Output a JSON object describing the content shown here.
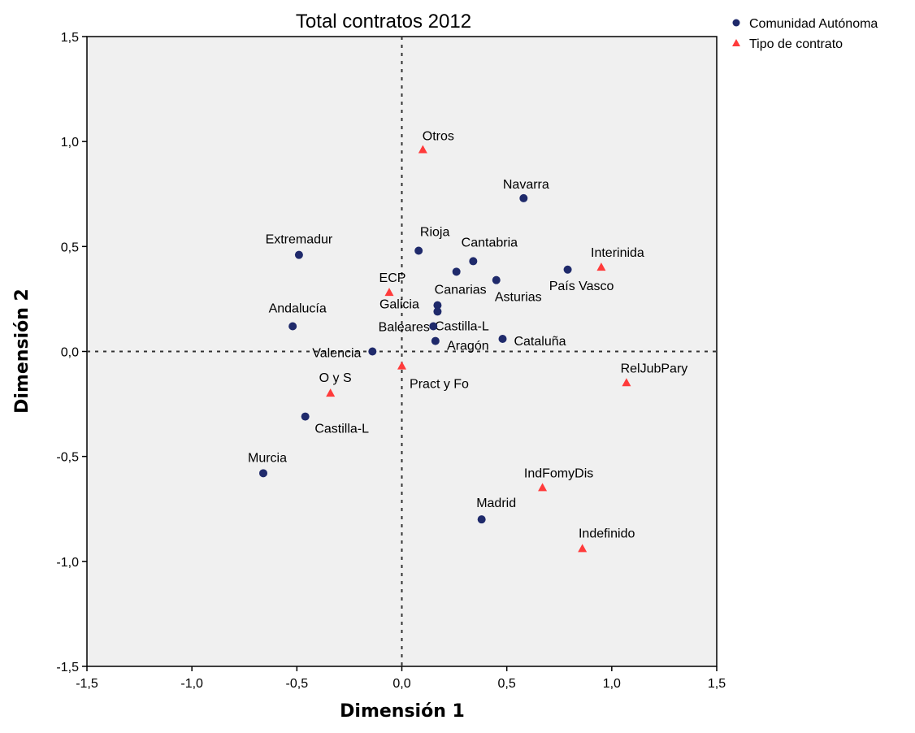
{
  "chart_data": {
    "type": "scatter",
    "title": "Total contratos 2012",
    "xlabel": "Dimensión 1",
    "ylabel": "Dimensión 2",
    "xlim": [
      -1.5,
      1.5
    ],
    "ylim": [
      -1.5,
      1.5
    ],
    "x_ticks": [
      -1.5,
      -1.0,
      -0.5,
      0.0,
      0.5,
      1.0,
      1.5
    ],
    "y_ticks": [
      -1.5,
      -1.0,
      -0.5,
      0.0,
      0.5,
      1.0,
      1.5
    ],
    "x_tick_labels": [
      "-1,5",
      "-1,0",
      "-0,5",
      "0,0",
      "0,5",
      "1,0",
      "1,5"
    ],
    "y_tick_labels": [
      "-1,5",
      "-1,0",
      "-0,5",
      "0,0",
      "0,5",
      "1,0",
      "1,5"
    ],
    "reference_lines": {
      "x": 0,
      "y": 0,
      "style": "dashed"
    },
    "grid": false,
    "legend_position": "top-right outside",
    "series": [
      {
        "name": "Comunidad Autónoma",
        "marker": "circle",
        "color": "#1f2a6b",
        "points": [
          {
            "label": "Navarra",
            "x": 0.58,
            "y": 0.73
          },
          {
            "label": "Rioja",
            "x": 0.08,
            "y": 0.48
          },
          {
            "label": "Cantabria",
            "x": 0.34,
            "y": 0.43
          },
          {
            "label": "Extremadur",
            "x": -0.49,
            "y": 0.46
          },
          {
            "label": "País Vasco",
            "x": 0.79,
            "y": 0.39
          },
          {
            "label": "Canarias",
            "x": 0.26,
            "y": 0.38
          },
          {
            "label": "Asturias",
            "x": 0.45,
            "y": 0.34
          },
          {
            "label": "Galicia",
            "x": 0.17,
            "y": 0.22
          },
          {
            "label": "Castilla-L",
            "x": 0.17,
            "y": 0.19
          },
          {
            "label": "Andalucía",
            "x": -0.52,
            "y": 0.12
          },
          {
            "label": "Baleares",
            "x": 0.15,
            "y": 0.12
          },
          {
            "label": "Aragón",
            "x": 0.16,
            "y": 0.05
          },
          {
            "label": "Cataluña",
            "x": 0.48,
            "y": 0.06
          },
          {
            "label": "Valencia",
            "x": -0.14,
            "y": 0.0
          },
          {
            "label": "Castilla-L",
            "x": -0.46,
            "y": -0.31
          },
          {
            "label": "Murcia",
            "x": -0.66,
            "y": -0.58
          },
          {
            "label": "Madrid",
            "x": 0.38,
            "y": -0.8
          }
        ]
      },
      {
        "name": "Tipo de contrato",
        "marker": "triangle",
        "color": "#ff3b3b",
        "points": [
          {
            "label": "Otros",
            "x": 0.1,
            "y": 0.96
          },
          {
            "label": "Interinida",
            "x": 0.95,
            "y": 0.4
          },
          {
            "label": "ECP",
            "x": -0.06,
            "y": 0.28
          },
          {
            "label": "Pract y Fo",
            "x": 0.0,
            "y": -0.07
          },
          {
            "label": "RelJubPary",
            "x": 1.07,
            "y": -0.15
          },
          {
            "label": "O y S",
            "x": -0.34,
            "y": -0.2
          },
          {
            "label": "IndFomyDis",
            "x": 0.67,
            "y": -0.65
          },
          {
            "label": "Indefinido",
            "x": 0.86,
            "y": -0.94
          }
        ]
      }
    ]
  }
}
